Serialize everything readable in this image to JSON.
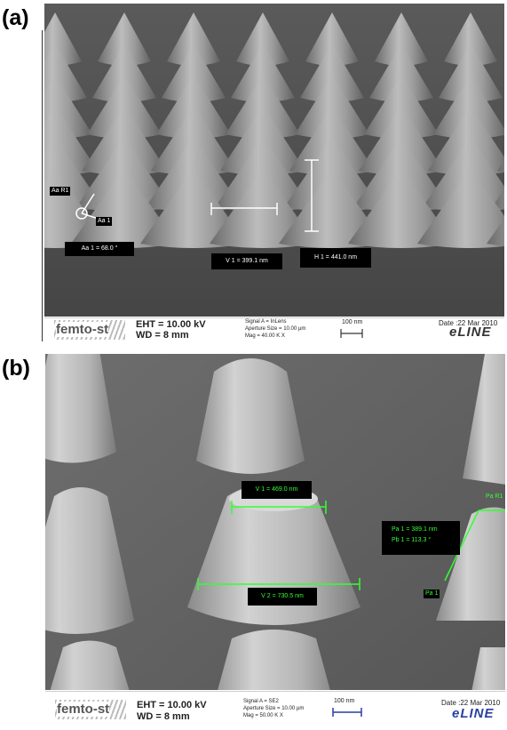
{
  "panel_a": {
    "label": "(a)",
    "annotations": {
      "angle_ref": "Aa R1",
      "angle_point": "Aa 1",
      "angle_value": "Aa 1 = 68.0 °",
      "v_measure": "V 1 = 399.1 nm",
      "h_measure": "H 1 = 441.0 nm"
    },
    "footer": {
      "logo": "femto-st",
      "eht": "EHT = 10.00 kV",
      "wd": "WD =    8 mm",
      "signal": "Signal A = InLens",
      "aperture": "Aperture Size = 10.00 µm",
      "mag": "Mag =  40.00 K X",
      "scale": "100 nm",
      "date": "Date :22 Mar 2010",
      "brand": "eLINE"
    }
  },
  "panel_b": {
    "label": "(b)",
    "annotations": {
      "v1": "V 1 = 469.0 nm",
      "v2": "V 2 = 730.5 nm",
      "pa": "Pa 1 = 389.1 nm",
      "pb": "Pb 1 = 113.3 °",
      "pa_ref": "Pa R1",
      "pa_point": "Pa 1"
    },
    "footer": {
      "logo": "femto-st",
      "eht": "EHT = 10.00 kV",
      "wd": "WD =    8 mm",
      "signal": "Signal A = SE2",
      "aperture": "Aperture Size = 10.00 µm",
      "mag": "Mag =  50.00 K X",
      "scale": "100 nm",
      "date": "Date :22 Mar 2010",
      "brand": "eLINE"
    }
  },
  "colors": {
    "measure_green": "#33ff33",
    "measure_white": "#ffffff",
    "scale_blue": "#2a3fa0"
  }
}
